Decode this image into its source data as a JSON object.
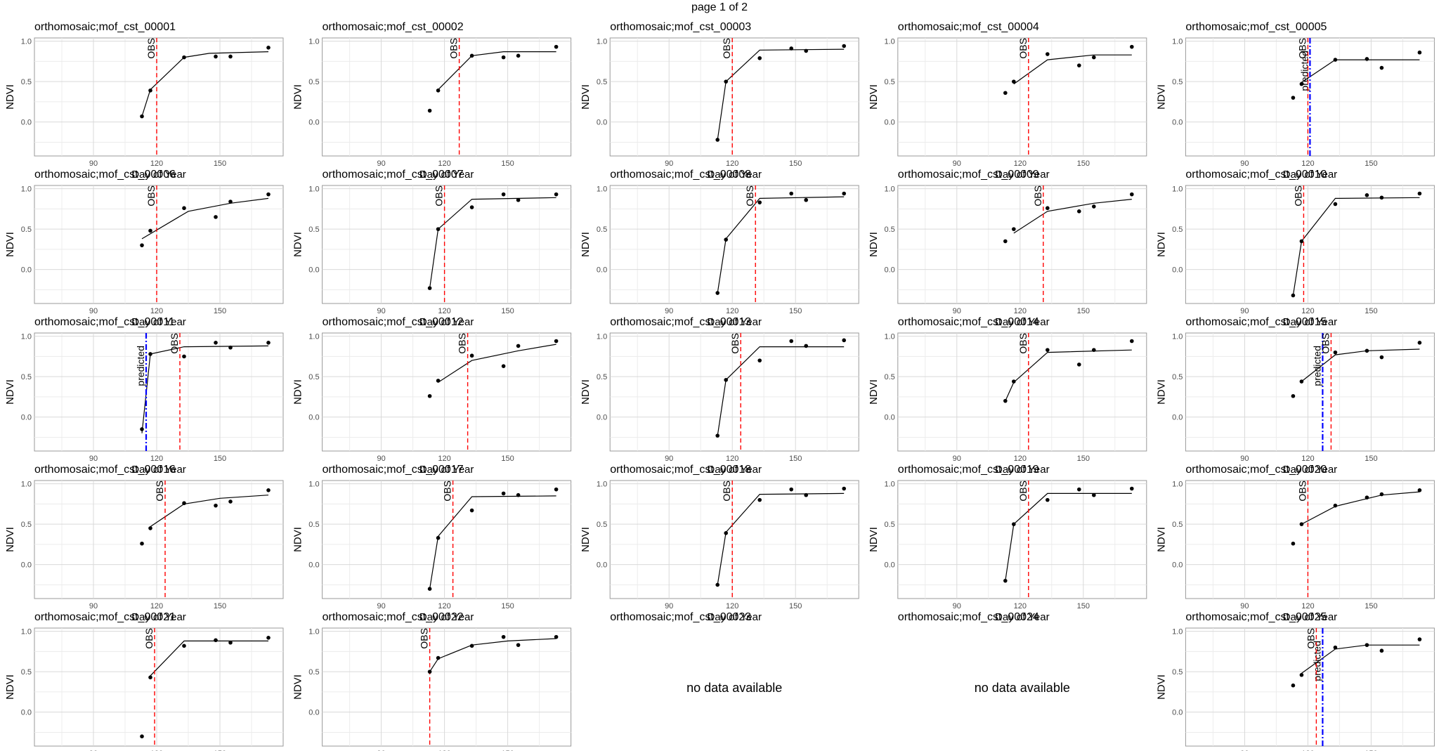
{
  "page": {
    "header": "page 1 of 2"
  },
  "colors": {
    "obs": "#ff0000",
    "predicted": "#0000ff",
    "line": "#000000",
    "grid": "#d9d9d9",
    "border": "#999999"
  },
  "chart_common": {
    "type": "line",
    "xlabel": "Day of Year",
    "ylabel": "NDVI",
    "xlim": [
      62,
      180
    ],
    "ylim": [
      -0.42,
      1.0
    ],
    "xticks": [
      90,
      120,
      150
    ],
    "xtick_labels": [
      "90",
      "120",
      "150"
    ],
    "yticks": [
      0.0,
      0.5,
      1.0
    ],
    "ytick_labels": [
      "0.0",
      "0.5",
      "1.0"
    ],
    "obs_label": "OBS",
    "predicted_label": "predicted",
    "no_data_text": "no data available",
    "grid": true
  },
  "chart_data": [
    {
      "type": "line",
      "title": "orthomosaic;mof_cst_00001",
      "points": [
        [
          113,
          0.07
        ],
        [
          117,
          0.39
        ],
        [
          133,
          0.8
        ],
        [
          148,
          0.81
        ],
        [
          155,
          0.81
        ],
        [
          173,
          0.92
        ]
      ],
      "fit": [
        [
          113,
          0.07
        ],
        [
          117,
          0.4
        ],
        [
          133,
          0.8
        ],
        [
          145,
          0.85
        ],
        [
          173,
          0.87
        ]
      ],
      "obs": 120,
      "predicted": null
    },
    {
      "type": "line",
      "title": "orthomosaic;mof_cst_00006",
      "points": [
        [
          113,
          0.3
        ],
        [
          117,
          0.48
        ],
        [
          133,
          0.76
        ],
        [
          148,
          0.65
        ],
        [
          155,
          0.84
        ],
        [
          173,
          0.93
        ]
      ],
      "fit": [
        [
          113,
          0.38
        ],
        [
          135,
          0.72
        ],
        [
          155,
          0.82
        ],
        [
          173,
          0.88
        ]
      ],
      "obs": 120,
      "predicted": null
    },
    {
      "type": "line",
      "title": "orthomosaic;mof_cst_00011",
      "points": [
        [
          113,
          -0.15
        ],
        [
          117,
          0.78
        ],
        [
          133,
          0.75
        ],
        [
          148,
          0.92
        ],
        [
          155,
          0.86
        ],
        [
          173,
          0.92
        ]
      ],
      "fit": [
        [
          113,
          -0.2
        ],
        [
          117,
          0.78
        ],
        [
          133,
          0.87
        ],
        [
          173,
          0.88
        ]
      ],
      "obs": 131,
      "predicted": 115
    },
    {
      "type": "line",
      "title": "orthomosaic;mof_cst_00016",
      "points": [
        [
          113,
          0.26
        ],
        [
          117,
          0.45
        ],
        [
          133,
          0.76
        ],
        [
          148,
          0.73
        ],
        [
          155,
          0.78
        ],
        [
          173,
          0.92
        ]
      ],
      "fit": [
        [
          117,
          0.47
        ],
        [
          133,
          0.75
        ],
        [
          150,
          0.82
        ],
        [
          173,
          0.86
        ]
      ],
      "obs": 124,
      "predicted": null
    },
    {
      "type": "line",
      "title": "orthomosaic;mof_cst_00021",
      "points": [
        [
          113,
          -0.3
        ],
        [
          117,
          0.43
        ],
        [
          133,
          0.82
        ],
        [
          148,
          0.89
        ],
        [
          155,
          0.86
        ],
        [
          173,
          0.92
        ]
      ],
      "fit": [
        [
          117,
          0.45
        ],
        [
          133,
          0.88
        ],
        [
          173,
          0.88
        ]
      ],
      "obs": 119,
      "predicted": null
    },
    {
      "type": "line",
      "title": "orthomosaic;mof_cst_00002",
      "points": [
        [
          113,
          0.14
        ],
        [
          117,
          0.39
        ],
        [
          133,
          0.82
        ],
        [
          148,
          0.8
        ],
        [
          155,
          0.82
        ],
        [
          173,
          0.93
        ]
      ],
      "fit": [
        [
          117,
          0.4
        ],
        [
          133,
          0.82
        ],
        [
          148,
          0.87
        ],
        [
          173,
          0.87
        ]
      ],
      "obs": 127,
      "predicted": null
    },
    {
      "type": "line",
      "title": "orthomosaic;mof_cst_00007",
      "points": [
        [
          113,
          -0.23
        ],
        [
          117,
          0.5
        ],
        [
          133,
          0.77
        ],
        [
          148,
          0.93
        ],
        [
          155,
          0.86
        ],
        [
          173,
          0.93
        ]
      ],
      "fit": [
        [
          113,
          -0.23
        ],
        [
          117,
          0.5
        ],
        [
          133,
          0.87
        ],
        [
          173,
          0.89
        ]
      ],
      "obs": 120,
      "predicted": null
    },
    {
      "type": "line",
      "title": "orthomosaic;mof_cst_00012",
      "points": [
        [
          113,
          0.26
        ],
        [
          117,
          0.45
        ],
        [
          133,
          0.76
        ],
        [
          148,
          0.63
        ],
        [
          155,
          0.88
        ],
        [
          173,
          0.94
        ]
      ],
      "fit": [
        [
          117,
          0.43
        ],
        [
          133,
          0.7
        ],
        [
          155,
          0.82
        ],
        [
          173,
          0.9
        ]
      ],
      "obs": 131,
      "predicted": null
    },
    {
      "type": "line",
      "title": "orthomosaic;mof_cst_00017",
      "points": [
        [
          113,
          -0.3
        ],
        [
          117,
          0.33
        ],
        [
          133,
          0.67
        ],
        [
          148,
          0.88
        ],
        [
          155,
          0.86
        ],
        [
          173,
          0.93
        ]
      ],
      "fit": [
        [
          113,
          -0.3
        ],
        [
          117,
          0.35
        ],
        [
          133,
          0.84
        ],
        [
          173,
          0.85
        ]
      ],
      "obs": 124,
      "predicted": null
    },
    {
      "type": "line",
      "title": "orthomosaic;mof_cst_00022",
      "points": [
        [
          113,
          0.5
        ],
        [
          117,
          0.67
        ],
        [
          133,
          0.82
        ],
        [
          148,
          0.93
        ],
        [
          155,
          0.83
        ],
        [
          173,
          0.93
        ]
      ],
      "fit": [
        [
          113,
          0.5
        ],
        [
          117,
          0.66
        ],
        [
          133,
          0.83
        ],
        [
          150,
          0.88
        ],
        [
          173,
          0.91
        ]
      ],
      "obs": 113,
      "predicted": null
    },
    {
      "type": "line",
      "title": "orthomosaic;mof_cst_00003",
      "points": [
        [
          113,
          -0.22
        ],
        [
          117,
          0.5
        ],
        [
          133,
          0.79
        ],
        [
          148,
          0.91
        ],
        [
          155,
          0.88
        ],
        [
          173,
          0.94
        ]
      ],
      "fit": [
        [
          113,
          -0.22
        ],
        [
          117,
          0.5
        ],
        [
          133,
          0.89
        ],
        [
          173,
          0.9
        ]
      ],
      "obs": 120,
      "predicted": null
    },
    {
      "type": "line",
      "title": "orthomosaic;mof_cst_00008",
      "points": [
        [
          113,
          -0.29
        ],
        [
          117,
          0.37
        ],
        [
          133,
          0.83
        ],
        [
          148,
          0.94
        ],
        [
          155,
          0.86
        ],
        [
          173,
          0.94
        ]
      ],
      "fit": [
        [
          113,
          -0.29
        ],
        [
          117,
          0.38
        ],
        [
          133,
          0.88
        ],
        [
          173,
          0.9
        ]
      ],
      "obs": 131,
      "predicted": null
    },
    {
      "type": "line",
      "title": "orthomosaic;mof_cst_00013",
      "points": [
        [
          113,
          -0.23
        ],
        [
          117,
          0.46
        ],
        [
          133,
          0.7
        ],
        [
          148,
          0.94
        ],
        [
          155,
          0.88
        ],
        [
          173,
          0.95
        ]
      ],
      "fit": [
        [
          113,
          -0.23
        ],
        [
          117,
          0.46
        ],
        [
          133,
          0.87
        ],
        [
          173,
          0.87
        ]
      ],
      "obs": 124,
      "predicted": null
    },
    {
      "type": "line",
      "title": "orthomosaic;mof_cst_00018",
      "points": [
        [
          113,
          -0.25
        ],
        [
          117,
          0.39
        ],
        [
          133,
          0.8
        ],
        [
          148,
          0.93
        ],
        [
          155,
          0.86
        ],
        [
          173,
          0.94
        ]
      ],
      "fit": [
        [
          113,
          -0.25
        ],
        [
          117,
          0.4
        ],
        [
          133,
          0.87
        ],
        [
          173,
          0.88
        ]
      ],
      "obs": 120,
      "predicted": null
    },
    {
      "type": "line",
      "title": "orthomosaic;mof_cst_00023",
      "no_data": true
    },
    {
      "type": "line",
      "title": "orthomosaic;mof_cst_00004",
      "points": [
        [
          113,
          0.36
        ],
        [
          117,
          0.5
        ],
        [
          133,
          0.84
        ],
        [
          148,
          0.7
        ],
        [
          155,
          0.8
        ],
        [
          173,
          0.93
        ]
      ],
      "fit": [
        [
          117,
          0.47
        ],
        [
          133,
          0.77
        ],
        [
          155,
          0.83
        ],
        [
          173,
          0.83
        ]
      ],
      "obs": 124,
      "predicted": null
    },
    {
      "type": "line",
      "title": "orthomosaic;mof_cst_00009",
      "points": [
        [
          113,
          0.35
        ],
        [
          117,
          0.5
        ],
        [
          133,
          0.76
        ],
        [
          148,
          0.72
        ],
        [
          155,
          0.78
        ],
        [
          173,
          0.93
        ]
      ],
      "fit": [
        [
          117,
          0.45
        ],
        [
          133,
          0.72
        ],
        [
          155,
          0.82
        ],
        [
          173,
          0.87
        ]
      ],
      "obs": 131,
      "predicted": null
    },
    {
      "type": "line",
      "title": "orthomosaic;mof_cst_00014",
      "points": [
        [
          113,
          0.2
        ],
        [
          117,
          0.44
        ],
        [
          133,
          0.83
        ],
        [
          148,
          0.65
        ],
        [
          155,
          0.83
        ],
        [
          173,
          0.94
        ]
      ],
      "fit": [
        [
          113,
          0.2
        ],
        [
          117,
          0.43
        ],
        [
          133,
          0.8
        ],
        [
          173,
          0.83
        ]
      ],
      "obs": 124,
      "predicted": null
    },
    {
      "type": "line",
      "title": "orthomosaic;mof_cst_00019",
      "points": [
        [
          113,
          -0.2
        ],
        [
          117,
          0.5
        ],
        [
          133,
          0.8
        ],
        [
          148,
          0.93
        ],
        [
          155,
          0.86
        ],
        [
          173,
          0.94
        ]
      ],
      "fit": [
        [
          113,
          -0.2
        ],
        [
          117,
          0.5
        ],
        [
          133,
          0.88
        ],
        [
          173,
          0.88
        ]
      ],
      "obs": 124,
      "predicted": null
    },
    {
      "type": "line",
      "title": "orthomosaic;mof_cst_00024",
      "no_data": true
    },
    {
      "type": "line",
      "title": "orthomosaic;mof_cst_00005",
      "points": [
        [
          113,
          0.3
        ],
        [
          117,
          0.47
        ],
        [
          133,
          0.77
        ],
        [
          148,
          0.78
        ],
        [
          155,
          0.67
        ],
        [
          173,
          0.86
        ]
      ],
      "fit": [
        [
          117,
          0.49
        ],
        [
          133,
          0.77
        ],
        [
          173,
          0.77
        ]
      ],
      "obs": 120,
      "predicted": 121
    },
    {
      "type": "line",
      "title": "orthomosaic;mof_cst_00010",
      "points": [
        [
          113,
          -0.32
        ],
        [
          117,
          0.35
        ],
        [
          133,
          0.81
        ],
        [
          148,
          0.92
        ],
        [
          155,
          0.89
        ],
        [
          173,
          0.94
        ]
      ],
      "fit": [
        [
          113,
          -0.32
        ],
        [
          117,
          0.35
        ],
        [
          133,
          0.88
        ],
        [
          173,
          0.89
        ]
      ],
      "obs": 118,
      "predicted": null
    },
    {
      "type": "line",
      "title": "orthomosaic;mof_cst_00015",
      "points": [
        [
          113,
          0.26
        ],
        [
          117,
          0.44
        ],
        [
          133,
          0.8
        ],
        [
          148,
          0.82
        ],
        [
          155,
          0.74
        ],
        [
          173,
          0.92
        ]
      ],
      "fit": [
        [
          117,
          0.44
        ],
        [
          133,
          0.77
        ],
        [
          148,
          0.82
        ],
        [
          173,
          0.84
        ]
      ],
      "obs": 131,
      "predicted": 127
    },
    {
      "type": "line",
      "title": "orthomosaic;mof_cst_00020",
      "points": [
        [
          113,
          0.26
        ],
        [
          117,
          0.5
        ],
        [
          133,
          0.73
        ],
        [
          148,
          0.83
        ],
        [
          155,
          0.87
        ],
        [
          173,
          0.92
        ]
      ],
      "fit": [
        [
          117,
          0.5
        ],
        [
          133,
          0.72
        ],
        [
          155,
          0.86
        ],
        [
          173,
          0.9
        ]
      ],
      "obs": 120,
      "predicted": null
    },
    {
      "type": "line",
      "title": "orthomosaic;mof_cst_00025",
      "points": [
        [
          113,
          0.33
        ],
        [
          117,
          0.46
        ],
        [
          133,
          0.8
        ],
        [
          148,
          0.83
        ],
        [
          155,
          0.76
        ],
        [
          173,
          0.9
        ]
      ],
      "fit": [
        [
          117,
          0.48
        ],
        [
          133,
          0.78
        ],
        [
          148,
          0.83
        ],
        [
          173,
          0.83
        ]
      ],
      "obs": 124,
      "predicted": 127
    }
  ]
}
